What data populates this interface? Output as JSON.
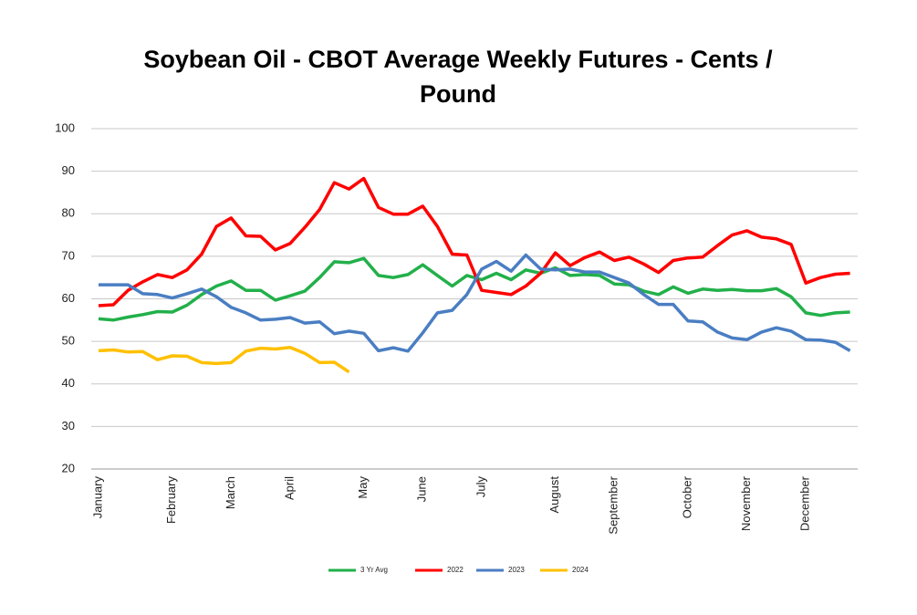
{
  "chart_data": {
    "type": "line",
    "title": "Soybean Oil - CBOT Average Weekly Futures - Cents / Pound",
    "categories": [
      "January",
      null,
      null,
      null,
      null,
      "February",
      null,
      null,
      null,
      "March",
      null,
      null,
      null,
      "April",
      null,
      null,
      null,
      null,
      "May",
      null,
      null,
      null,
      "June",
      null,
      null,
      null,
      "July",
      null,
      null,
      null,
      null,
      "August",
      null,
      null,
      null,
      "September",
      null,
      null,
      null,
      null,
      "October",
      null,
      null,
      null,
      "November",
      null,
      null,
      null,
      "December",
      null,
      null,
      null
    ],
    "ylim": [
      20,
      100
    ],
    "yticks": [
      20,
      30,
      40,
      50,
      60,
      70,
      80,
      90,
      100
    ],
    "grid": true,
    "legend": "bottom",
    "series": [
      {
        "name": "3 Yr Avg",
        "color": "#22b04a",
        "values": [
          55.3,
          55,
          55.7,
          56.3,
          57,
          56.9,
          58.5,
          61,
          63,
          64.2,
          62,
          62,
          59.7,
          60.7,
          61.8,
          65,
          68.7,
          68.5,
          69.5,
          65.5,
          65,
          65.7,
          68,
          65.5,
          63,
          65.5,
          64.5,
          66,
          64.5,
          66.8,
          66,
          67.3,
          65.5,
          65.7,
          65.5,
          63.5,
          63.3,
          61.8,
          61,
          62.8,
          61.3,
          62.3,
          62,
          62.2,
          61.9,
          61.9,
          62.4,
          60.5,
          56.7,
          56.1,
          56.7,
          56.9
        ]
      },
      {
        "name": "2022",
        "color": "#ff0000",
        "values": [
          58.4,
          58.6,
          62,
          64,
          65.7,
          65,
          66.8,
          70.5,
          77,
          79,
          74.8,
          74.7,
          71.5,
          73,
          76.8,
          81,
          87.3,
          85.8,
          88.3,
          81.5,
          79.9,
          79.9,
          81.8,
          77,
          70.5,
          70.3,
          62,
          61.5,
          61,
          63,
          66,
          70.8,
          67.8,
          69.7,
          71,
          69,
          69.8,
          68.2,
          66.2,
          69,
          69.6,
          69.8,
          72.5,
          75,
          76,
          74.5,
          74.1,
          72.8,
          63.7,
          65,
          65.8,
          66
        ]
      },
      {
        "name": "2023",
        "color": "#4a7ec2",
        "values": [
          63.3,
          63.3,
          63.3,
          61.2,
          61,
          60.2,
          61.2,
          62.3,
          60.5,
          58,
          56.7,
          55,
          55.2,
          55.6,
          54.3,
          54.6,
          51.8,
          52.4,
          51.9,
          47.8,
          48.5,
          47.7,
          52,
          56.7,
          57.3,
          61,
          67,
          68.8,
          66.5,
          70.3,
          67,
          66.8,
          67,
          66.3,
          66.3,
          65,
          63.7,
          61,
          58.7,
          58.7,
          54.8,
          54.6,
          52.2,
          50.8,
          50.4,
          52.2,
          53.2,
          52.4,
          50.4,
          50.3,
          49.8,
          47.8
        ]
      },
      {
        "name": "2024",
        "color": "#ffc000",
        "values": [
          47.8,
          48,
          47.5,
          47.6,
          45.7,
          46.6,
          46.5,
          45,
          44.8,
          45,
          47.7,
          48.4,
          48.2,
          48.6,
          47.2,
          45,
          45.1,
          42.8,
          null,
          null,
          null,
          null,
          null,
          null,
          null,
          null,
          null,
          null,
          null,
          null,
          null,
          null,
          null,
          null,
          null,
          null,
          null,
          null,
          null,
          null,
          null,
          null,
          null,
          null,
          null,
          null,
          null,
          null,
          null,
          null,
          null,
          null
        ]
      }
    ]
  }
}
